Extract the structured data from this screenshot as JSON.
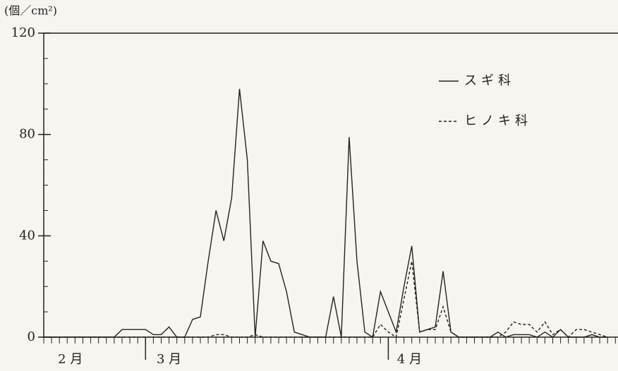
{
  "chart_data": {
    "type": "line",
    "unit_label": "(個／cm²)",
    "x": [
      0,
      1,
      2,
      3,
      4,
      5,
      6,
      7,
      8,
      9,
      10,
      11,
      12,
      13,
      14,
      15,
      16,
      17,
      18,
      19,
      20,
      21,
      22,
      23,
      24,
      25,
      26,
      27,
      28,
      29,
      30,
      31,
      32,
      33,
      34,
      35,
      36,
      37,
      38,
      39,
      40,
      41,
      42,
      43,
      44,
      45,
      46,
      47,
      48,
      49,
      50,
      51,
      52,
      53,
      54,
      55,
      56,
      57,
      58,
      59,
      60,
      61,
      62,
      63,
      64,
      65,
      66,
      67,
      68,
      69,
      70,
      71,
      72
    ],
    "series": [
      {
        "name": "スギ科",
        "color": "#222222",
        "dash": "solid",
        "values": [
          0,
          0,
          0,
          0,
          0,
          0,
          0,
          0,
          0,
          0,
          3,
          3,
          3,
          3,
          1,
          1,
          4,
          0,
          0,
          7,
          8,
          30,
          50,
          38,
          55,
          98,
          70,
          0,
          38,
          30,
          29,
          18,
          2,
          1,
          0,
          0,
          0,
          16,
          0,
          79,
          30,
          2,
          0,
          18,
          10,
          2,
          20,
          36,
          2,
          3,
          4,
          26,
          2,
          0,
          0,
          0,
          0,
          0,
          2,
          0,
          1,
          1,
          1,
          0,
          2,
          0,
          3,
          0,
          0,
          0,
          1,
          0,
          0
        ]
      },
      {
        "name": "ヒノキ科",
        "color": "#222222",
        "dash": "dashed",
        "values": [
          0,
          0,
          0,
          0,
          0,
          0,
          0,
          0,
          0,
          0,
          0,
          0,
          0,
          0,
          0,
          0,
          0,
          0,
          0,
          0,
          0,
          0,
          1,
          1,
          0,
          0,
          0,
          1,
          0,
          0,
          0,
          0,
          0,
          0,
          0,
          0,
          0,
          0,
          0,
          0,
          0,
          0,
          0,
          5,
          2,
          0,
          15,
          30,
          2,
          3,
          3,
          12,
          2,
          0,
          0,
          0,
          0,
          0,
          0,
          2,
          6,
          5,
          5,
          2,
          6,
          1,
          3,
          0,
          3,
          3,
          2,
          1,
          0
        ]
      }
    ],
    "xlim": [
      0,
      73
    ],
    "xticks": [
      {
        "value": 3.4,
        "label": "2 月"
      },
      {
        "value": 16,
        "label": "3 月"
      },
      {
        "value": 46.7,
        "label": "4 月"
      }
    ],
    "month_starts": [
      13,
      44
    ],
    "ylim": [
      0,
      120
    ],
    "yticks": [
      0,
      40,
      80,
      120
    ],
    "legend": "upper-right"
  }
}
